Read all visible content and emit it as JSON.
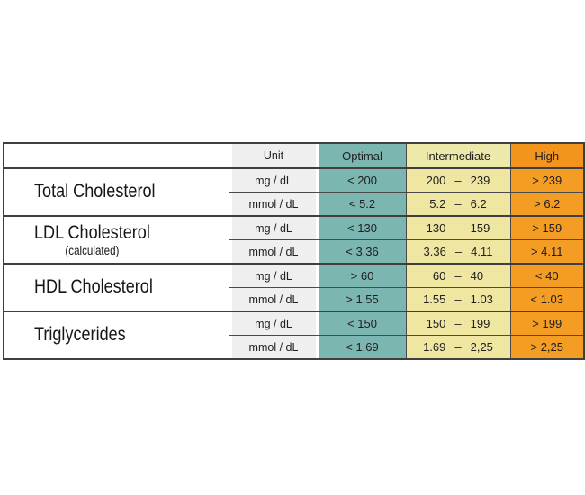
{
  "header": {
    "unit": "Unit",
    "optimal": "Optimal",
    "intermediate": "Intermediate",
    "high": "High"
  },
  "groups": [
    {
      "name": "Total Cholesterol",
      "subtitle": "",
      "rows": [
        {
          "unit": "mg / dL",
          "optimal": "< 200",
          "inter": {
            "lo": "200",
            "dash": "–",
            "hi": "239"
          },
          "high": "> 239"
        },
        {
          "unit": "mmol / dL",
          "optimal": "< 5.2",
          "inter": {
            "lo": "5.2",
            "dash": "–",
            "hi": "6.2"
          },
          "high": "> 6.2"
        }
      ]
    },
    {
      "name": "LDL Cholesterol",
      "subtitle": "(calculated)",
      "rows": [
        {
          "unit": "mg / dL",
          "optimal": "< 130",
          "inter": {
            "lo": "130",
            "dash": "–",
            "hi": "159"
          },
          "high": "> 159"
        },
        {
          "unit": "mmol / dL",
          "optimal": "< 3.36",
          "inter": {
            "lo": "3.36",
            "dash": "–",
            "hi": "4.11"
          },
          "high": "> 4.11"
        }
      ]
    },
    {
      "name": "HDL Cholesterol",
      "subtitle": "",
      "rows": [
        {
          "unit": "mg / dL",
          "optimal": "> 60",
          "inter": {
            "lo": "60",
            "dash": "–",
            "hi": "40"
          },
          "high": "< 40"
        },
        {
          "unit": "mmol / dL",
          "optimal": "> 1.55",
          "inter": {
            "lo": "1.55",
            "dash": "–",
            "hi": "1.03"
          },
          "high": "< 1.03"
        }
      ]
    },
    {
      "name": "Triglycerides",
      "subtitle": "",
      "rows": [
        {
          "unit": "mg / dL",
          "optimal": "< 150",
          "inter": {
            "lo": "150",
            "dash": "–",
            "hi": "199"
          },
          "high": "> 199"
        },
        {
          "unit": "mmol / dL",
          "optimal": "< 1.69",
          "inter": {
            "lo": "1.69",
            "dash": "–",
            "hi": "2,25"
          },
          "high": "> 2,25"
        }
      ]
    }
  ],
  "colors": {
    "optimal": "#7BB7B0",
    "intermediate_header": "#EDE9AB",
    "intermediate_cell": "#EFE6A1",
    "high_header": "#F2941E",
    "high_cell": "#F49D24",
    "unit_box": "#EFEFEF",
    "border": "#3F3F3F",
    "text": "#1E1E1E",
    "background": "#FFFFFF"
  },
  "chart_data": {
    "type": "table",
    "columns": [
      "",
      "Unit",
      "Optimal",
      "Intermediate",
      "High"
    ],
    "rows": [
      [
        "Total Cholesterol",
        "mg / dL",
        "< 200",
        "200 – 239",
        "> 239"
      ],
      [
        "Total Cholesterol",
        "mmol / dL",
        "< 5.2",
        "5.2 – 6.2",
        "> 6.2"
      ],
      [
        "LDL Cholesterol (calculated)",
        "mg / dL",
        "< 130",
        "130 – 159",
        "> 159"
      ],
      [
        "LDL Cholesterol (calculated)",
        "mmol / dL",
        "< 3.36",
        "3.36 – 4.11",
        "> 4.11"
      ],
      [
        "HDL Cholesterol",
        "mg / dL",
        "> 60",
        "60 – 40",
        "< 40"
      ],
      [
        "HDL Cholesterol",
        "mmol / dL",
        "> 1.55",
        "1.55 – 1.03",
        "< 1.03"
      ],
      [
        "Triglycerides",
        "mg / dL",
        "< 150",
        "150 – 199",
        "> 199"
      ],
      [
        "Triglycerides",
        "mmol / dL",
        "< 1.69",
        "1.69 – 2,25",
        "> 2,25"
      ]
    ],
    "layout": "first column left-aligned white; Unit column gray inset boxes; Optimal teal; Intermediate pale yellow; High orange; dark collapsed grid borders"
  }
}
